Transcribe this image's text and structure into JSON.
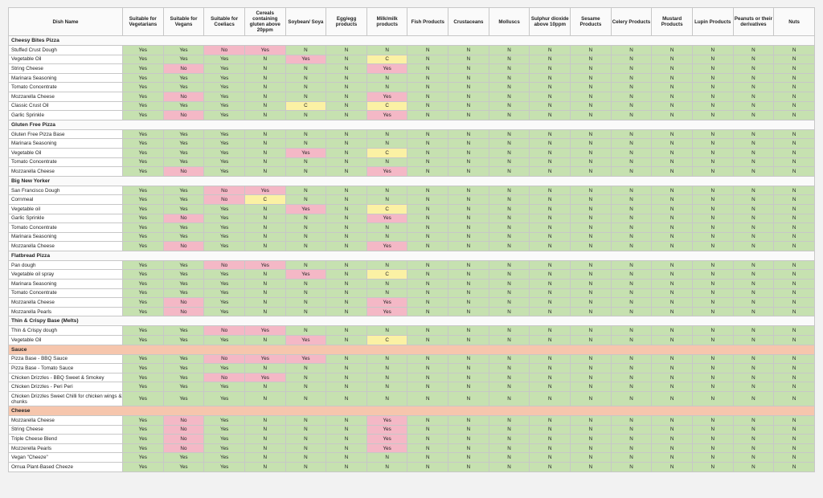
{
  "colors": {
    "green": "#c6e1b0",
    "pink": "#f4b8c6",
    "yellow": "#fbf1a4",
    "section_orange": "#f6c6ad"
  },
  "headers": [
    "Dish Name",
    "Suitable for Vegetarians",
    "Suitable for Vegans",
    "Suitable for Coeliacs",
    "Cereals containing gluten above 20ppm",
    "Soybean/ Soya",
    "Egg/egg products",
    "Milk/milk products",
    "Fish Products",
    "Crustaceans",
    "Molluscs",
    "Sulphur dioxide above 10ppm",
    "Sesame Products",
    "Celery Products",
    "Mustard Products",
    "Lupin Products",
    "Peanuts or their derivatives",
    "Nuts"
  ],
  "sections": [
    {
      "title": "Cheesy Bites Pizza",
      "rows": [
        {
          "name": "Stuffed Crust Dough",
          "values": [
            "Yes",
            "Yes",
            "No",
            "Yes",
            "N",
            "N",
            "N",
            "N",
            "N",
            "N",
            "N",
            "N",
            "N",
            "N",
            "N",
            "N",
            "N"
          ]
        },
        {
          "name": "Vegetable Oil",
          "values": [
            "Yes",
            "Yes",
            "Yes",
            "N",
            "Yes",
            "N",
            "C",
            "N",
            "N",
            "N",
            "N",
            "N",
            "N",
            "N",
            "N",
            "N",
            "N"
          ]
        },
        {
          "name": "String Cheese",
          "values": [
            "Yes",
            "No",
            "Yes",
            "N",
            "N",
            "N",
            "Yes",
            "N",
            "N",
            "N",
            "N",
            "N",
            "N",
            "N",
            "N",
            "N",
            "N"
          ]
        },
        {
          "name": "Marinara Seasoning",
          "values": [
            "Yes",
            "Yes",
            "Yes",
            "N",
            "N",
            "N",
            "N",
            "N",
            "N",
            "N",
            "N",
            "N",
            "N",
            "N",
            "N",
            "N",
            "N"
          ]
        },
        {
          "name": "Tomato Concentrate",
          "values": [
            "Yes",
            "Yes",
            "Yes",
            "N",
            "N",
            "N",
            "N",
            "N",
            "N",
            "N",
            "N",
            "N",
            "N",
            "N",
            "N",
            "N",
            "N"
          ]
        },
        {
          "name": "Mozzarella Cheese",
          "values": [
            "Yes",
            "No",
            "Yes",
            "N",
            "N",
            "N",
            "Yes",
            "N",
            "N",
            "N",
            "N",
            "N",
            "N",
            "N",
            "N",
            "N",
            "N"
          ]
        },
        {
          "name": "Classic Crust Oil",
          "values": [
            "Yes",
            "Yes",
            "Yes",
            "N",
            "C",
            "N",
            "C",
            "N",
            "N",
            "N",
            "N",
            "N",
            "N",
            "N",
            "N",
            "N",
            "N"
          ]
        },
        {
          "name": "Garlic Sprinkle",
          "values": [
            "Yes",
            "No",
            "Yes",
            "N",
            "N",
            "N",
            "Yes",
            "N",
            "N",
            "N",
            "N",
            "N",
            "N",
            "N",
            "N",
            "N",
            "N"
          ]
        }
      ]
    },
    {
      "title": "Gluten Free Pizza",
      "rows": [
        {
          "name": "Gluten Free Pizza Base",
          "values": [
            "Yes",
            "Yes",
            "Yes",
            "N",
            "N",
            "N",
            "N",
            "N",
            "N",
            "N",
            "N",
            "N",
            "N",
            "N",
            "N",
            "N",
            "N"
          ]
        },
        {
          "name": "Marinara Seasoning",
          "values": [
            "Yes",
            "Yes",
            "Yes",
            "N",
            "N",
            "N",
            "N",
            "N",
            "N",
            "N",
            "N",
            "N",
            "N",
            "N",
            "N",
            "N",
            "N"
          ]
        },
        {
          "name": "Vegetable Oil",
          "values": [
            "Yes",
            "Yes",
            "Yes",
            "N",
            "Yes",
            "N",
            "C",
            "N",
            "N",
            "N",
            "N",
            "N",
            "N",
            "N",
            "N",
            "N",
            "N"
          ]
        },
        {
          "name": "Tomato Concentrate",
          "values": [
            "Yes",
            "Yes",
            "Yes",
            "N",
            "N",
            "N",
            "N",
            "N",
            "N",
            "N",
            "N",
            "N",
            "N",
            "N",
            "N",
            "N",
            "N"
          ]
        },
        {
          "name": "Mozzarella Cheese",
          "values": [
            "Yes",
            "No",
            "Yes",
            "N",
            "N",
            "N",
            "Yes",
            "N",
            "N",
            "N",
            "N",
            "N",
            "N",
            "N",
            "N",
            "N",
            "N"
          ]
        }
      ]
    },
    {
      "title": "Big New Yorker",
      "rows": [
        {
          "name": "San Francisco Dough",
          "values": [
            "Yes",
            "Yes",
            "No",
            "Yes",
            "N",
            "N",
            "N",
            "N",
            "N",
            "N",
            "N",
            "N",
            "N",
            "N",
            "N",
            "N",
            "N"
          ]
        },
        {
          "name": "Cornmeal",
          "values": [
            "Yes",
            "Yes",
            "No",
            "C",
            "N",
            "N",
            "N",
            "N",
            "N",
            "N",
            "N",
            "N",
            "N",
            "N",
            "N",
            "N",
            "N"
          ]
        },
        {
          "name": "Vegetable oil",
          "values": [
            "Yes",
            "Yes",
            "Yes",
            "N",
            "Yes",
            "N",
            "C",
            "N",
            "N",
            "N",
            "N",
            "N",
            "N",
            "N",
            "N",
            "N",
            "N"
          ]
        },
        {
          "name": "Garlic Sprinkle",
          "values": [
            "Yes",
            "No",
            "Yes",
            "N",
            "N",
            "N",
            "Yes",
            "N",
            "N",
            "N",
            "N",
            "N",
            "N",
            "N",
            "N",
            "N",
            "N"
          ]
        },
        {
          "name": "Tomato Concentrate",
          "values": [
            "Yes",
            "Yes",
            "Yes",
            "N",
            "N",
            "N",
            "N",
            "N",
            "N",
            "N",
            "N",
            "N",
            "N",
            "N",
            "N",
            "N",
            "N"
          ]
        },
        {
          "name": "Marinara Seasoning",
          "values": [
            "Yes",
            "Yes",
            "Yes",
            "N",
            "N",
            "N",
            "N",
            "N",
            "N",
            "N",
            "N",
            "N",
            "N",
            "N",
            "N",
            "N",
            "N"
          ]
        },
        {
          "name": "Mozzarella Cheese",
          "values": [
            "Yes",
            "No",
            "Yes",
            "N",
            "N",
            "N",
            "Yes",
            "N",
            "N",
            "N",
            "N",
            "N",
            "N",
            "N",
            "N",
            "N",
            "N"
          ]
        }
      ]
    },
    {
      "title": "Flatbread Pizza",
      "rows": [
        {
          "name": "Pan dough",
          "values": [
            "Yes",
            "Yes",
            "No",
            "Yes",
            "N",
            "N",
            "N",
            "N",
            "N",
            "N",
            "N",
            "N",
            "N",
            "N",
            "N",
            "N",
            "N"
          ]
        },
        {
          "name": "Vegetable oil spray",
          "values": [
            "Yes",
            "Yes",
            "Yes",
            "N",
            "Yes",
            "N",
            "C",
            "N",
            "N",
            "N",
            "N",
            "N",
            "N",
            "N",
            "N",
            "N",
            "N"
          ]
        },
        {
          "name": "Marinara Seasoning",
          "values": [
            "Yes",
            "Yes",
            "Yes",
            "N",
            "N",
            "N",
            "N",
            "N",
            "N",
            "N",
            "N",
            "N",
            "N",
            "N",
            "N",
            "N",
            "N"
          ]
        },
        {
          "name": "Tomato Concentrate",
          "values": [
            "Yes",
            "Yes",
            "Yes",
            "N",
            "N",
            "N",
            "N",
            "N",
            "N",
            "N",
            "N",
            "N",
            "N",
            "N",
            "N",
            "N",
            "N"
          ]
        },
        {
          "name": "Mozzarella Cheese",
          "values": [
            "Yes",
            "No",
            "Yes",
            "N",
            "N",
            "N",
            "Yes",
            "N",
            "N",
            "N",
            "N",
            "N",
            "N",
            "N",
            "N",
            "N",
            "N"
          ]
        },
        {
          "name": "Mozzarella Pearls",
          "values": [
            "Yes",
            "No",
            "Yes",
            "N",
            "N",
            "N",
            "Yes",
            "N",
            "N",
            "N",
            "N",
            "N",
            "N",
            "N",
            "N",
            "N",
            "N"
          ]
        }
      ]
    },
    {
      "title": "Thin & Crispy Base (Melts)",
      "rows": [
        {
          "name": "Thin & Crispy dough",
          "values": [
            "Yes",
            "Yes",
            "No",
            "Yes",
            "N",
            "N",
            "N",
            "N",
            "N",
            "N",
            "N",
            "N",
            "N",
            "N",
            "N",
            "N",
            "N"
          ]
        },
        {
          "name": "Vegetable Oil",
          "values": [
            "Yes",
            "Yes",
            "Yes",
            "N",
            "Yes",
            "N",
            "C",
            "N",
            "N",
            "N",
            "N",
            "N",
            "N",
            "N",
            "N",
            "N",
            "N"
          ]
        }
      ]
    },
    {
      "title": "Sauce",
      "orange": true,
      "rows": [
        {
          "name": "Pizza Base - BBQ Sauce",
          "values": [
            "Yes",
            "Yes",
            "No",
            "Yes",
            "Yes",
            "N",
            "N",
            "N",
            "N",
            "N",
            "N",
            "N",
            "N",
            "N",
            "N",
            "N",
            "N"
          ]
        },
        {
          "name": "Pizza Base - Tomato Sauce",
          "values": [
            "Yes",
            "Yes",
            "Yes",
            "N",
            "N",
            "N",
            "N",
            "N",
            "N",
            "N",
            "N",
            "N",
            "N",
            "N",
            "N",
            "N",
            "N"
          ]
        },
        {
          "name": "Chicken Drizzles - BBQ Sweet & Smokey",
          "values": [
            "Yes",
            "Yes",
            "No",
            "Yes",
            "N",
            "N",
            "N",
            "N",
            "N",
            "N",
            "N",
            "N",
            "N",
            "N",
            "N",
            "N",
            "N"
          ]
        },
        {
          "name": "Chicken Drizzles - Peri Peri",
          "values": [
            "Yes",
            "Yes",
            "Yes",
            "N",
            "N",
            "N",
            "N",
            "N",
            "N",
            "N",
            "N",
            "N",
            "N",
            "N",
            "N",
            "N",
            "N"
          ]
        },
        {
          "name": "Chicken Drizzles Sweet Chilli for chicken wings & chunks",
          "tall": true,
          "values": [
            "Yes",
            "Yes",
            "Yes",
            "N",
            "N",
            "N",
            "N",
            "N",
            "N",
            "N",
            "N",
            "N",
            "N",
            "N",
            "N",
            "N",
            "N"
          ]
        }
      ]
    },
    {
      "title": "Cheese",
      "orange": true,
      "rows": [
        {
          "name": "Mozzarella Cheese",
          "values": [
            "Yes",
            "No",
            "Yes",
            "N",
            "N",
            "N",
            "Yes",
            "N",
            "N",
            "N",
            "N",
            "N",
            "N",
            "N",
            "N",
            "N",
            "N"
          ]
        },
        {
          "name": "String Cheese",
          "values": [
            "Yes",
            "No",
            "Yes",
            "N",
            "N",
            "N",
            "Yes",
            "N",
            "N",
            "N",
            "N",
            "N",
            "N",
            "N",
            "N",
            "N",
            "N"
          ]
        },
        {
          "name": "Triple Cheese Blend",
          "values": [
            "Yes",
            "No",
            "Yes",
            "N",
            "N",
            "N",
            "Yes",
            "N",
            "N",
            "N",
            "N",
            "N",
            "N",
            "N",
            "N",
            "N",
            "N"
          ]
        },
        {
          "name": "Mozzerella Pearls",
          "values": [
            "Yes",
            "No",
            "Yes",
            "N",
            "N",
            "N",
            "Yes",
            "N",
            "N",
            "N",
            "N",
            "N",
            "N",
            "N",
            "N",
            "N",
            "N"
          ]
        },
        {
          "name": "Vegan \"Cheeze\"",
          "values": [
            "Yes",
            "Yes",
            "Yes",
            "N",
            "N",
            "N",
            "N",
            "N",
            "N",
            "N",
            "N",
            "N",
            "N",
            "N",
            "N",
            "N",
            "N"
          ]
        },
        {
          "name": "Ornua Plant-Based Cheeze",
          "values": [
            "Yes",
            "Yes",
            "Yes",
            "N",
            "N",
            "N",
            "N",
            "N",
            "N",
            "N",
            "N",
            "N",
            "N",
            "N",
            "N",
            "N",
            "N"
          ]
        }
      ]
    }
  ]
}
